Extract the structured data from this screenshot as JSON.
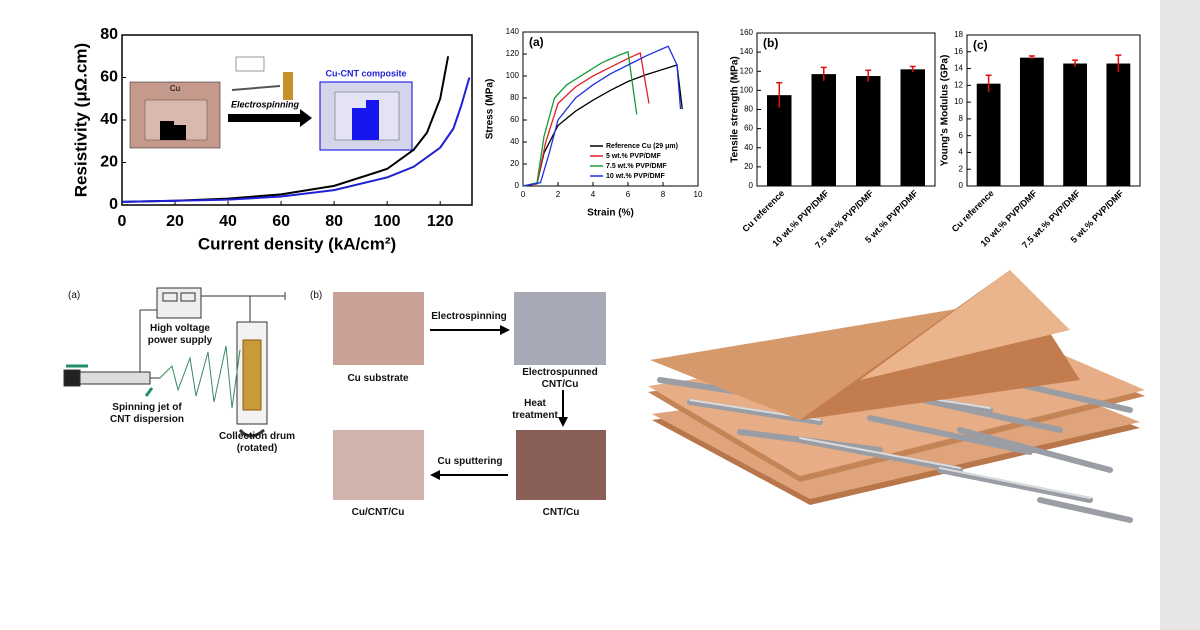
{
  "chart_data": [
    {
      "type": "line",
      "xlabel": "Current density (kA/cm²)",
      "ylabel": "Resistivity (μΩ.cm)",
      "xlim": [
        0,
        132
      ],
      "xticks": [
        0,
        20,
        40,
        60,
        80,
        100,
        120
      ],
      "ylim": [
        0,
        80
      ],
      "yticks": [
        0,
        20,
        40,
        60,
        80
      ],
      "annotations": [
        "Cu",
        "Electrospinning",
        "Cu-CNT composite"
      ],
      "series": [
        {
          "color": "#000000",
          "x": [
            0,
            20,
            40,
            60,
            80,
            100,
            110,
            115,
            120,
            123
          ],
          "values": [
            1.5,
            2,
            3,
            5,
            9,
            17,
            26,
            34,
            50,
            70
          ]
        },
        {
          "color": "#1f1fd6",
          "x": [
            0,
            20,
            40,
            60,
            80,
            100,
            110,
            120,
            125,
            128,
            131
          ],
          "values": [
            1.5,
            2,
            2.5,
            4,
            7,
            13,
            18,
            27,
            36,
            47,
            60
          ]
        }
      ]
    },
    {
      "type": "line",
      "panel_label": "(a)",
      "xlabel": "Strain (%)",
      "ylabel": "Stress (MPa)",
      "xlim": [
        0,
        10
      ],
      "xticks": [
        0,
        2,
        4,
        6,
        8,
        10
      ],
      "ylim": [
        0,
        140
      ],
      "yticks": [
        0,
        20,
        40,
        60,
        80,
        100,
        120,
        140
      ],
      "legend": "lower right",
      "series": [
        {
          "name": "Reference Cu (29 μm)",
          "color": "#000000",
          "x": [
            0,
            0.8,
            1.2,
            2,
            3,
            4,
            5,
            6,
            7,
            8,
            8.8,
            9.1
          ],
          "values": [
            0,
            2,
            30,
            55,
            68,
            78,
            87,
            95,
            101,
            106,
            110,
            70
          ]
        },
        {
          "name": "5 wt.% PVP/DMF",
          "color": "#e0202a",
          "x": [
            0,
            0.8,
            1.3,
            2,
            3,
            4,
            5,
            6,
            6.7,
            7.2
          ],
          "values": [
            0,
            2,
            40,
            75,
            90,
            100,
            108,
            116,
            121,
            75
          ]
        },
        {
          "name": "7.5 wt.% PVP/DMF",
          "color": "#1a9a3a",
          "x": [
            0,
            0.8,
            1.2,
            1.8,
            2.5,
            3.5,
            4.5,
            5.5,
            6,
            6.5
          ],
          "values": [
            0,
            3,
            45,
            80,
            92,
            102,
            112,
            119,
            122,
            65
          ]
        },
        {
          "name": "10 wt.% PVP/DMF",
          "color": "#2030e0",
          "x": [
            0,
            1,
            1.5,
            2,
            3,
            4,
            5,
            6,
            7,
            8,
            8.3,
            8.8,
            9
          ],
          "values": [
            0,
            3,
            30,
            60,
            80,
            92,
            102,
            110,
            118,
            125,
            127,
            110,
            70
          ]
        }
      ]
    },
    {
      "type": "bar",
      "panel_label": "(b)",
      "ylabel": "Tensile strength (MPa)",
      "categories": [
        "Cu reference",
        "10 wt.% PVP/DMF",
        "7.5 wt.% PVP/DMF",
        "5 wt.% PVP/DMF"
      ],
      "values": [
        95,
        117,
        115,
        122
      ],
      "errors": [
        13,
        7,
        6,
        3
      ],
      "color": "#000000",
      "error_color": "#e01010",
      "ylim": [
        0,
        160
      ],
      "yticks": [
        0,
        20,
        40,
        60,
        80,
        100,
        120,
        140,
        160
      ]
    },
    {
      "type": "bar",
      "panel_label": "(c)",
      "ylabel": "Young's Modulus (GPa)",
      "categories": [
        "Cu reference",
        "10 wt.% PVP/DMF",
        "7.5 wt.% PVP/DMF",
        "5 wt.% PVP/DMF"
      ],
      "values": [
        12.2,
        15.3,
        14.6,
        14.6
      ],
      "errors": [
        1,
        0.2,
        0.4,
        1
      ],
      "color": "#000000",
      "error_color": "#e01010",
      "ylim": [
        0,
        18
      ],
      "yticks": [
        0,
        2,
        4,
        6,
        8,
        10,
        12,
        14,
        16,
        18
      ]
    }
  ],
  "schematic": {
    "label": "(a)",
    "power_supply": "High voltage power supply",
    "jet": "Spinning jet of CNT dispersion",
    "drum": "Collection drum (rotated)"
  },
  "process": {
    "label": "(b)",
    "photos": [
      "Cu substrate",
      "Electrospunned CNT/Cu",
      "CNT/Cu",
      "Cu/CNT/Cu"
    ],
    "arrows": [
      "Electrospinning",
      "Heat treatment",
      "Cu sputtering"
    ]
  }
}
